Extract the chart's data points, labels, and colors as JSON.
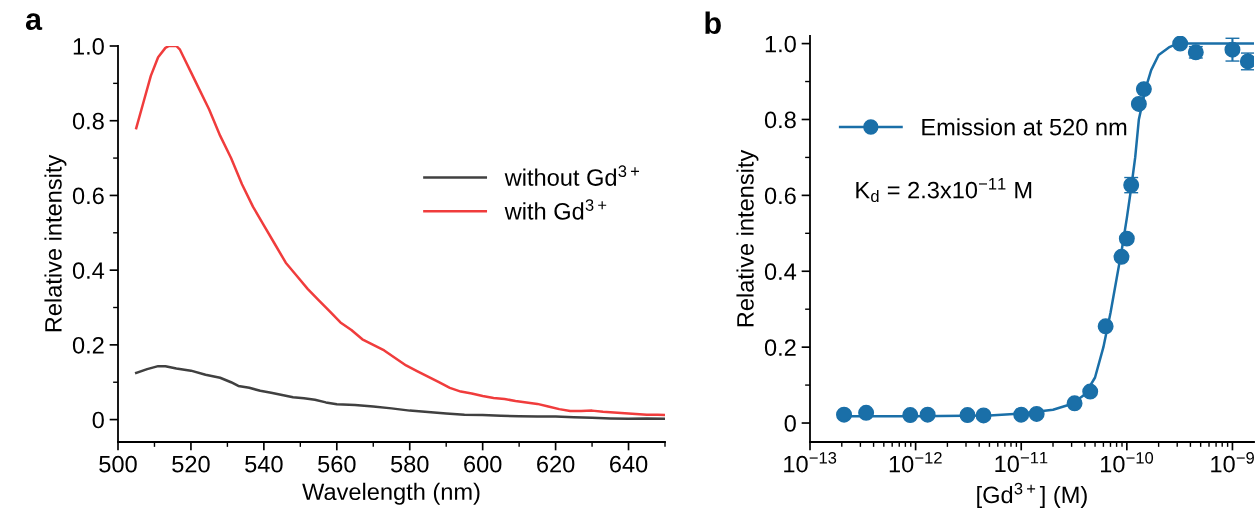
{
  "chart_data": [
    {
      "type": "line",
      "title": "a",
      "xlabel": "Wavelength (nm)",
      "ylabel": "Relative intensity",
      "xlim": [
        500,
        650
      ],
      "xticks": [
        500,
        {
          "value": 510,
          "label": null
        },
        520,
        {
          "value": 530,
          "label": null
        },
        540,
        {
          "value": 550,
          "label": null
        },
        560,
        {
          "value": 570,
          "label": null
        },
        580,
        {
          "value": 590,
          "label": null
        },
        600,
        {
          "value": 610,
          "label": null
        },
        620,
        {
          "value": 630,
          "label": null
        },
        640,
        {
          "value": 650,
          "label": null
        }
      ],
      "ylim": [
        -0.06,
        1.0
      ],
      "yticks": [
        0,
        {
          "value": 0.1,
          "label": null
        },
        0.2,
        {
          "value": 0.3,
          "label": null
        },
        0.4,
        {
          "value": 0.5,
          "label": null
        },
        0.6,
        {
          "value": 0.7,
          "label": null
        },
        0.8,
        {
          "value": 0.9,
          "label": null
        },
        {
          "value": 1.0,
          "label": "1.0"
        }
      ],
      "legend": "right",
      "grid": false,
      "series": [
        {
          "name": "without Gd$^{3+}$",
          "color": "#404040",
          "x": [
            505,
            508,
            511,
            513,
            516,
            520,
            524,
            528,
            531,
            533,
            536,
            539,
            542,
            545,
            548,
            551,
            554,
            557,
            560,
            565,
            570,
            575,
            580,
            585,
            590,
            595,
            600,
            605,
            610,
            615,
            620,
            625,
            630,
            635,
            640,
            645,
            650
          ],
          "values": [
            0.125,
            0.135,
            0.143,
            0.143,
            0.137,
            0.131,
            0.12,
            0.112,
            0.1,
            0.09,
            0.085,
            0.077,
            0.072,
            0.066,
            0.06,
            0.057,
            0.053,
            0.046,
            0.041,
            0.039,
            0.035,
            0.03,
            0.024,
            0.02,
            0.016,
            0.013,
            0.012,
            0.01,
            0.009,
            0.008,
            0.008,
            0.006,
            0.005,
            0.003,
            0.002,
            0.003,
            0.002
          ]
        },
        {
          "name": "with Gd$^{3+}$",
          "color": "#f03c3c",
          "x": [
            505,
            507,
            509,
            511,
            513,
            514,
            516,
            517,
            518,
            520,
            522,
            525,
            528,
            531,
            534,
            537,
            540,
            543,
            546,
            549,
            552,
            555,
            558,
            561,
            564,
            567,
            570,
            573,
            576,
            579,
            582,
            585,
            588,
            591,
            594,
            597,
            600,
            603,
            606,
            609,
            612,
            615,
            618,
            621,
            624,
            627,
            630,
            633,
            636,
            639,
            642,
            645,
            648,
            650
          ],
          "values": [
            0.78,
            0.85,
            0.92,
            0.97,
            0.995,
            1.0,
            1.0,
            0.99,
            0.97,
            0.93,
            0.89,
            0.83,
            0.76,
            0.7,
            0.63,
            0.57,
            0.52,
            0.47,
            0.42,
            0.385,
            0.35,
            0.32,
            0.29,
            0.26,
            0.24,
            0.215,
            0.2,
            0.185,
            0.165,
            0.145,
            0.13,
            0.115,
            0.1,
            0.085,
            0.075,
            0.07,
            0.063,
            0.058,
            0.055,
            0.05,
            0.046,
            0.042,
            0.035,
            0.028,
            0.023,
            0.023,
            0.024,
            0.021,
            0.019,
            0.017,
            0.015,
            0.013,
            0.013,
            0.012
          ]
        }
      ]
    },
    {
      "type": "scatter",
      "title": "b",
      "xlabel": "[Gd$^{3+}$] (M)",
      "ylabel": "Relative intensity",
      "log": "x",
      "xlim": [
        1e-13,
        1.6e-09
      ],
      "xticks": [
        {
          "value": 1e-13,
          "label": "10$^{−13}$"
        },
        {
          "value": 2e-13,
          "label": null
        },
        {
          "value": 3e-13,
          "label": null
        },
        {
          "value": 4e-13,
          "label": null
        },
        {
          "value": 5e-13,
          "label": null
        },
        {
          "value": 6e-13,
          "label": null
        },
        {
          "value": 7e-13,
          "label": null
        },
        {
          "value": 8e-13,
          "label": null
        },
        {
          "value": 9e-13,
          "label": null
        },
        {
          "value": 1e-12,
          "label": "10$^{−12}$"
        },
        {
          "value": 2e-12,
          "label": null
        },
        {
          "value": 3e-12,
          "label": null
        },
        {
          "value": 4e-12,
          "label": null
        },
        {
          "value": 5e-12,
          "label": null
        },
        {
          "value": 6e-12,
          "label": null
        },
        {
          "value": 7e-12,
          "label": null
        },
        {
          "value": 8e-12,
          "label": null
        },
        {
          "value": 9e-12,
          "label": null
        },
        {
          "value": 1e-11,
          "label": "10$^{−11}$"
        },
        {
          "value": 2e-11,
          "label": null
        },
        {
          "value": 3e-11,
          "label": null
        },
        {
          "value": 4e-11,
          "label": null
        },
        {
          "value": 5e-11,
          "label": null
        },
        {
          "value": 6e-11,
          "label": null
        },
        {
          "value": 7e-11,
          "label": null
        },
        {
          "value": 8e-11,
          "label": null
        },
        {
          "value": 9e-11,
          "label": null
        },
        {
          "value": 1e-10,
          "label": "10$^{−10}$"
        },
        {
          "value": 2e-10,
          "label": null
        },
        {
          "value": 3e-10,
          "label": null
        },
        {
          "value": 4e-10,
          "label": null
        },
        {
          "value": 5e-10,
          "label": null
        },
        {
          "value": 6e-10,
          "label": null
        },
        {
          "value": 7e-10,
          "label": null
        },
        {
          "value": 8e-10,
          "label": null
        },
        {
          "value": 9e-10,
          "label": null
        },
        {
          "value": 1e-09,
          "label": "10$^{−9}$"
        }
      ],
      "ylim": [
        -0.05,
        1.02
      ],
      "yticks": [
        0,
        {
          "value": 0.1,
          "label": null
        },
        0.2,
        {
          "value": 0.3,
          "label": null
        },
        0.4,
        {
          "value": 0.5,
          "label": null
        },
        0.6,
        {
          "value": 0.7,
          "label": null
        },
        0.8,
        {
          "value": 0.9,
          "label": null
        },
        {
          "value": 1.0,
          "label": "1.0"
        }
      ],
      "legend": "top left",
      "grid": false,
      "marker": "circle",
      "annotations": [
        "K$_{d}$ = 2.3x10$^{−11}$ M"
      ],
      "series": [
        {
          "type": "line",
          "color": "#1a6fa8",
          "marker": "none",
          "x": [
            2e-13,
            1e-12,
            5e-12,
            1e-11,
            2e-11,
            3e-11,
            4e-11,
            5e-11,
            6e-11,
            7e-11,
            8e-11,
            9e-11,
            1e-10,
            1.1e-10,
            1.2e-10,
            1.3e-10,
            1.5e-10,
            1.7e-10,
            2e-10,
            2.5e-10,
            3e-10,
            1.6e-09
          ],
          "values": [
            0.018,
            0.018,
            0.02,
            0.025,
            0.035,
            0.05,
            0.075,
            0.12,
            0.2,
            0.29,
            0.38,
            0.46,
            0.54,
            0.62,
            0.7,
            0.8,
            0.88,
            0.93,
            0.97,
            0.99,
            1.0,
            1.0
          ]
        },
        {
          "type": "scatter",
          "name": "Emission at 520 nm",
          "color": "#1a6fa8",
          "x": [
            2.1e-13,
            3.4e-13,
            8.9e-13,
            1.3e-12,
            3.1e-12,
            4.4e-12,
            1e-11,
            1.4e-11,
            3.2e-11,
            4.5e-11,
            6.3e-11,
            8.9e-11,
            1e-10,
            1.1e-10,
            1.3e-10,
            1.45e-10,
            3.2e-10,
            4.5e-10,
            1e-09,
            1.4e-09
          ],
          "values": [
            0.022,
            0.027,
            0.021,
            0.022,
            0.021,
            0.02,
            0.022,
            0.024,
            0.052,
            0.083,
            0.255,
            0.438,
            0.486,
            0.627,
            0.841,
            0.88,
            1.0,
            0.977,
            0.984,
            0.953
          ],
          "errors": [
            null,
            null,
            null,
            null,
            null,
            null,
            null,
            null,
            null,
            null,
            null,
            null,
            null,
            0.02,
            null,
            null,
            null,
            0.015,
            0.03,
            0.022
          ]
        }
      ]
    }
  ]
}
